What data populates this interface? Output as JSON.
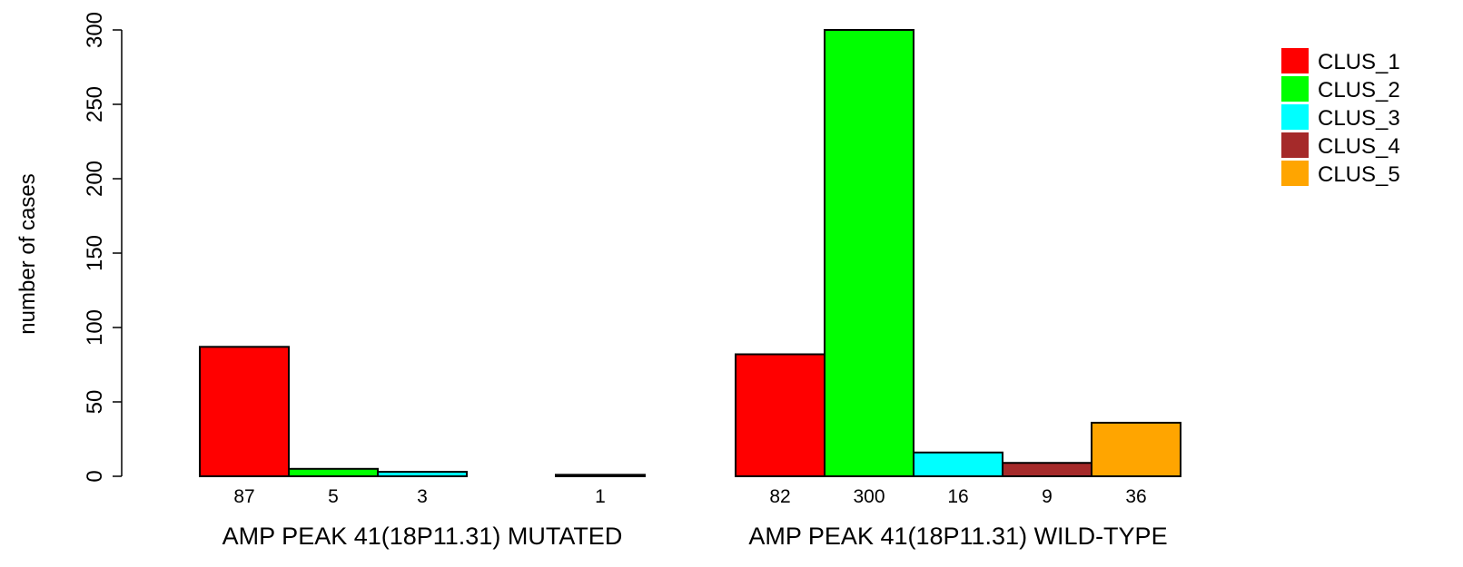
{
  "chart_data": {
    "type": "bar",
    "ylabel": "number of cases",
    "ylim": [
      0,
      300
    ],
    "yticks": [
      0,
      50,
      100,
      150,
      200,
      250,
      300
    ],
    "groups": [
      "AMP PEAK 41(18P11.31) MUTATED",
      "AMP PEAK 41(18P11.31) WILD-TYPE"
    ],
    "series": [
      {
        "name": "CLUS_1",
        "color": "#ff0000",
        "values": [
          87,
          82
        ],
        "labels": [
          "87",
          "82"
        ]
      },
      {
        "name": "CLUS_2",
        "color": "#00ff00",
        "values": [
          5,
          300
        ],
        "labels": [
          "5",
          "300"
        ]
      },
      {
        "name": "CLUS_3",
        "color": "#00ffff",
        "values": [
          3,
          16
        ],
        "labels": [
          "3",
          "16"
        ]
      },
      {
        "name": "CLUS_4",
        "color": "#a52a2a",
        "values": [
          0,
          9
        ],
        "labels": [
          "",
          "9"
        ]
      },
      {
        "name": "CLUS_5",
        "color": "#ffa500",
        "values": [
          1,
          36
        ],
        "labels": [
          "1",
          "36"
        ]
      }
    ],
    "legend_position": "top-right",
    "grid": false
  }
}
